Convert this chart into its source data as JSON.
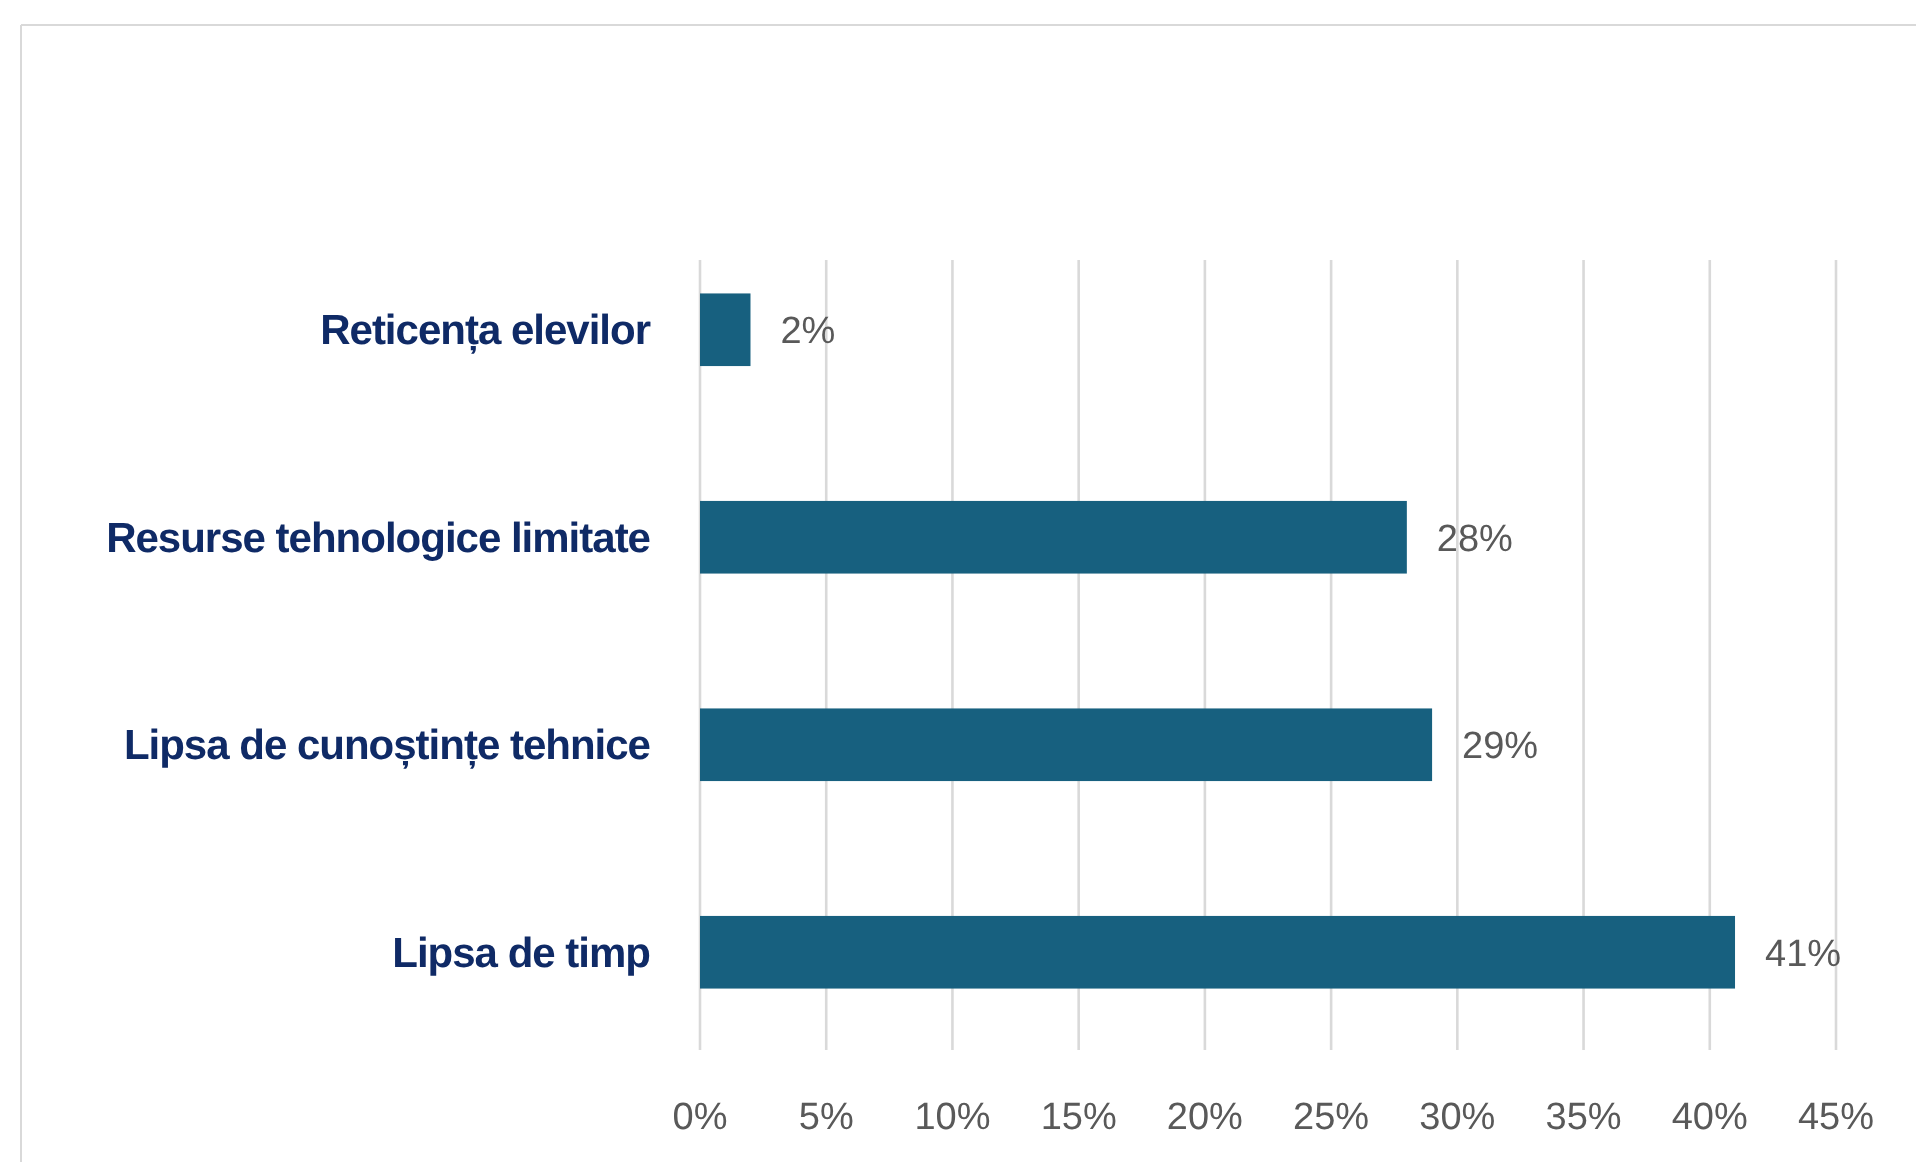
{
  "chart_data": {
    "type": "bar",
    "orientation": "horizontal",
    "categories": [
      "Reticența elevilor",
      "Resurse tehnologice limitate",
      "Lipsa de cunoștințe tehnice",
      "Lipsa de timp"
    ],
    "values": [
      2,
      28,
      29,
      41
    ],
    "color": "#17607f",
    "value_labels": [
      "2%",
      "28%",
      "29%",
      "41%"
    ],
    "xlim": [
      0,
      45
    ],
    "xticks": [
      {
        "value": 0,
        "label": "0%"
      },
      {
        "value": 5,
        "label": "5%"
      },
      {
        "value": 10,
        "label": "10%"
      },
      {
        "value": 15,
        "label": "15%"
      },
      {
        "value": 20,
        "label": "20%"
      },
      {
        "value": 25,
        "label": "25%"
      },
      {
        "value": 30,
        "label": "30%"
      },
      {
        "value": 35,
        "label": "35%"
      },
      {
        "value": 40,
        "label": "40%"
      },
      {
        "value": 45,
        "label": "45%"
      }
    ],
    "grid": "x"
  }
}
